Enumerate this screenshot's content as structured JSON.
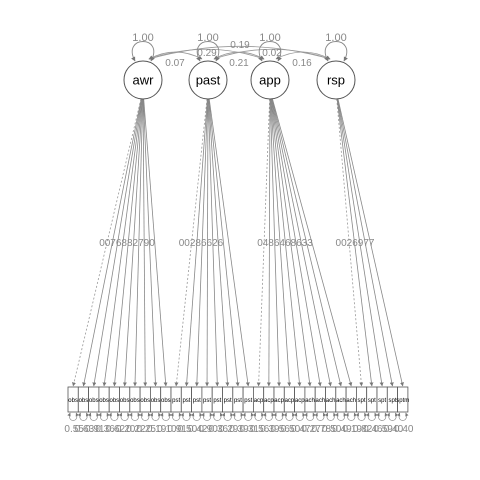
{
  "latents": [
    {
      "id": "awr",
      "label": "awr",
      "variance": "1.00"
    },
    {
      "id": "past",
      "label": "past",
      "variance": "1.00"
    },
    {
      "id": "app",
      "label": "app",
      "variance": "1.00"
    },
    {
      "id": "rsp",
      "label": "rsp",
      "variance": "1.00"
    }
  ],
  "covariances": [
    {
      "from": "awr",
      "to": "past",
      "label": "0.07"
    },
    {
      "from": "awr",
      "to": "app",
      "label": "0.29"
    },
    {
      "from": "awr",
      "to": "rsp",
      "label": "0.19"
    },
    {
      "from": "past",
      "to": "app",
      "label": "0.21"
    },
    {
      "from": "past",
      "to": "rsp",
      "label": "0.02"
    },
    {
      "from": "app",
      "to": "rsp",
      "label": "0.16"
    }
  ],
  "indicators": [
    {
      "latent": "awr",
      "label": "obs",
      "residual": "0.55"
    },
    {
      "latent": "awr",
      "label": "obs",
      "residual": "0.63"
    },
    {
      "latent": "awr",
      "label": "obs",
      "residual": "0.91"
    },
    {
      "latent": "awr",
      "label": "obs",
      "residual": "0.36"
    },
    {
      "latent": "awr",
      "label": "obs",
      "residual": "0.62"
    },
    {
      "latent": "awr",
      "label": "obs",
      "residual": "0.20"
    },
    {
      "latent": "awr",
      "label": "obs",
      "residual": "0.22"
    },
    {
      "latent": "awr",
      "label": "obs",
      "residual": "0.25"
    },
    {
      "latent": "awr",
      "label": "obs",
      "residual": "0.19"
    },
    {
      "latent": "awr",
      "label": "obs",
      "residual": "0.10"
    },
    {
      "latent": "past",
      "label": "pst",
      "residual": "0.91"
    },
    {
      "latent": "past",
      "label": "pst",
      "residual": "0.50"
    },
    {
      "latent": "past",
      "label": "pst",
      "residual": "0.42"
    },
    {
      "latent": "past",
      "label": "pst",
      "residual": "0.90"
    },
    {
      "latent": "past",
      "label": "pst",
      "residual": "0.36"
    },
    {
      "latent": "past",
      "label": "pst",
      "residual": "0.29"
    },
    {
      "latent": "past",
      "label": "pst",
      "residual": "0.39"
    },
    {
      "latent": "past",
      "label": "pst",
      "residual": "0.31"
    },
    {
      "latent": "app",
      "label": "acp",
      "residual": "0.56"
    },
    {
      "latent": "app",
      "label": "acp",
      "residual": "0.39"
    },
    {
      "latent": "app",
      "label": "acp",
      "residual": "0.56"
    },
    {
      "latent": "app",
      "label": "acp",
      "residual": "0.50"
    },
    {
      "latent": "app",
      "label": "acp",
      "residual": "0.47"
    },
    {
      "latent": "app",
      "label": "ach",
      "residual": "0.27"
    },
    {
      "latent": "app",
      "label": "ach",
      "residual": "0.78"
    },
    {
      "latent": "app",
      "label": "ach",
      "residual": "0.50"
    },
    {
      "latent": "app",
      "label": "ach",
      "residual": "0.49"
    },
    {
      "latent": "app",
      "label": "ach",
      "residual": "0.19"
    },
    {
      "latent": "rsp",
      "label": "spt",
      "residual": "0.82"
    },
    {
      "latent": "rsp",
      "label": "spt",
      "residual": "0.46"
    },
    {
      "latent": "rsp",
      "label": "spt",
      "residual": "0.59"
    },
    {
      "latent": "rsp",
      "label": "spt",
      "residual": "0.40"
    },
    {
      "latent": "rsp",
      "label": "sptm",
      "residual": "0.40"
    }
  ],
  "loading_labels": [
    {
      "latent": "awr",
      "text": "0076882790"
    },
    {
      "latent": "past",
      "text": "00286626"
    },
    {
      "latent": "app",
      "text": "0486468633"
    },
    {
      "latent": "rsp",
      "text": "0026977"
    }
  ]
}
